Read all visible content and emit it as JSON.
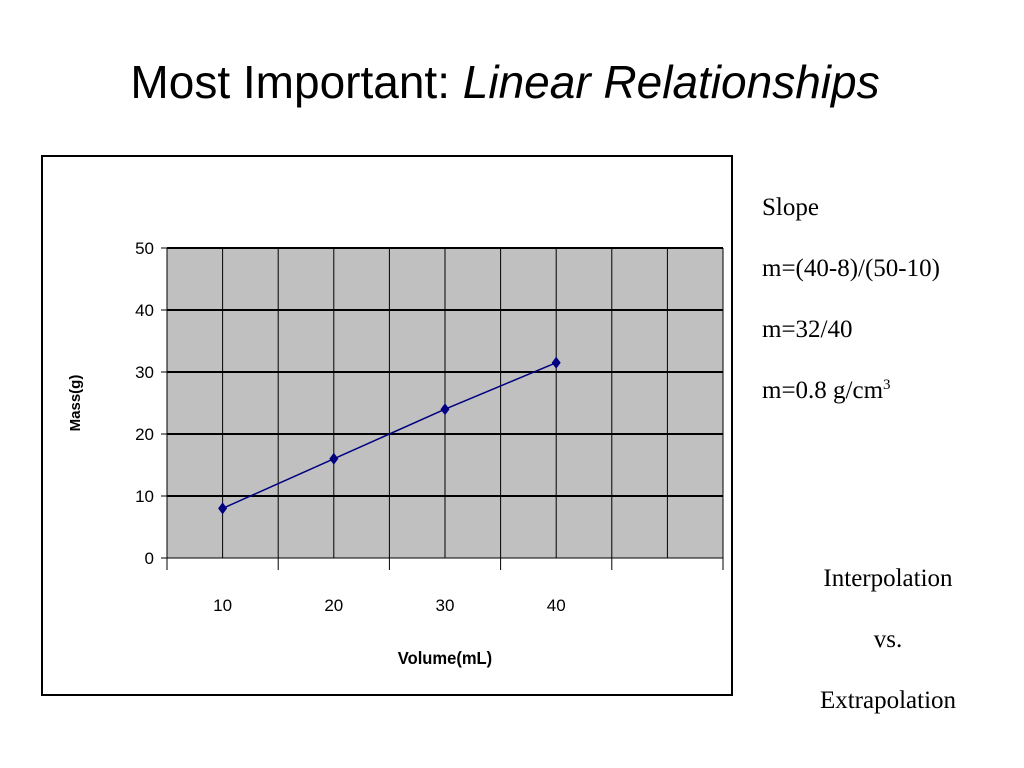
{
  "slide": {
    "title_plain": "Most Important: ",
    "title_italic": "Linear Relationships"
  },
  "notes": {
    "slope_heading": "Slope",
    "formula_1": "m=(40-8)/(50-10)",
    "formula_2": "m=32/40",
    "formula_3_base": "m=0.8 g/cm",
    "formula_3_exp": "3",
    "interp_1": "Interpolation",
    "interp_2": "vs.",
    "interp_3": "Extrapolation"
  },
  "chart_data": {
    "type": "line",
    "title": "",
    "xlabel": "Volume(mL)",
    "ylabel": "Mass(g)",
    "x": [
      10,
      20,
      30,
      40
    ],
    "series": [
      {
        "values": [
          8,
          16,
          24,
          31.5
        ]
      }
    ],
    "xlim": [
      5,
      55
    ],
    "ylim": [
      0,
      50
    ],
    "x_ticks": [
      10,
      20,
      30,
      40
    ],
    "y_ticks": [
      0,
      10,
      20,
      30,
      40,
      50
    ],
    "grid": true,
    "plot_background": "#c0c0c0",
    "line_color": "#000080",
    "marker": "diamond",
    "legend": "none"
  }
}
